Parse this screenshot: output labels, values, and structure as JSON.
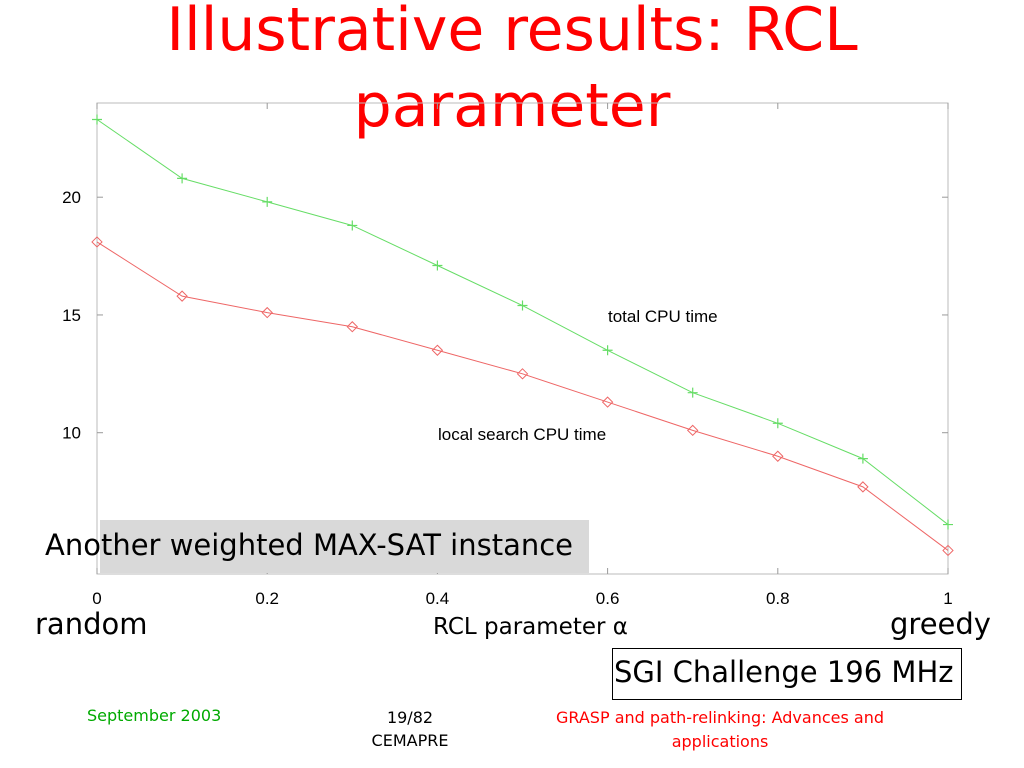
{
  "slide": {
    "title_line1": "Illustrative results: RCL",
    "title_line2": "parameter",
    "instance_label": "Another weighted MAX-SAT instance",
    "random_label": "random",
    "greedy_label": "greedy",
    "rcl_label": "RCL parameter α",
    "machine_label": "SGI Challenge 196 MHz",
    "footer": {
      "date": "September 2003",
      "page": "19/82",
      "org": "CEMAPRE",
      "conference": "GRASP and path-relinking: Advances and applications"
    }
  },
  "chart_data": {
    "type": "line",
    "x": [
      0,
      0.1,
      0.2,
      0.3,
      0.4,
      0.5,
      0.6,
      0.7,
      0.8,
      0.9,
      1
    ],
    "xlim": [
      0,
      1
    ],
    "ylim": [
      4,
      24
    ],
    "xticks": [
      "0",
      "0.2",
      "0.4",
      "0.6",
      "0.8",
      "1"
    ],
    "xtick_values": [
      0,
      0.2,
      0.4,
      0.6,
      0.8,
      1
    ],
    "yticks": [
      "10",
      "15",
      "20"
    ],
    "ytick_values": [
      10,
      15,
      20
    ],
    "grid": false,
    "series": [
      {
        "name": "total CPU time",
        "color": "#66dd66",
        "marker": "plus",
        "values": [
          23.3,
          20.8,
          19.8,
          18.8,
          17.1,
          15.4,
          13.5,
          11.7,
          10.4,
          8.9,
          6.1
        ]
      },
      {
        "name": "local search CPU time",
        "color": "#ee6666",
        "marker": "diamond",
        "values": [
          18.1,
          15.8,
          15.1,
          14.5,
          13.5,
          12.5,
          11.3,
          10.1,
          9.0,
          7.7,
          5.0
        ]
      }
    ]
  }
}
